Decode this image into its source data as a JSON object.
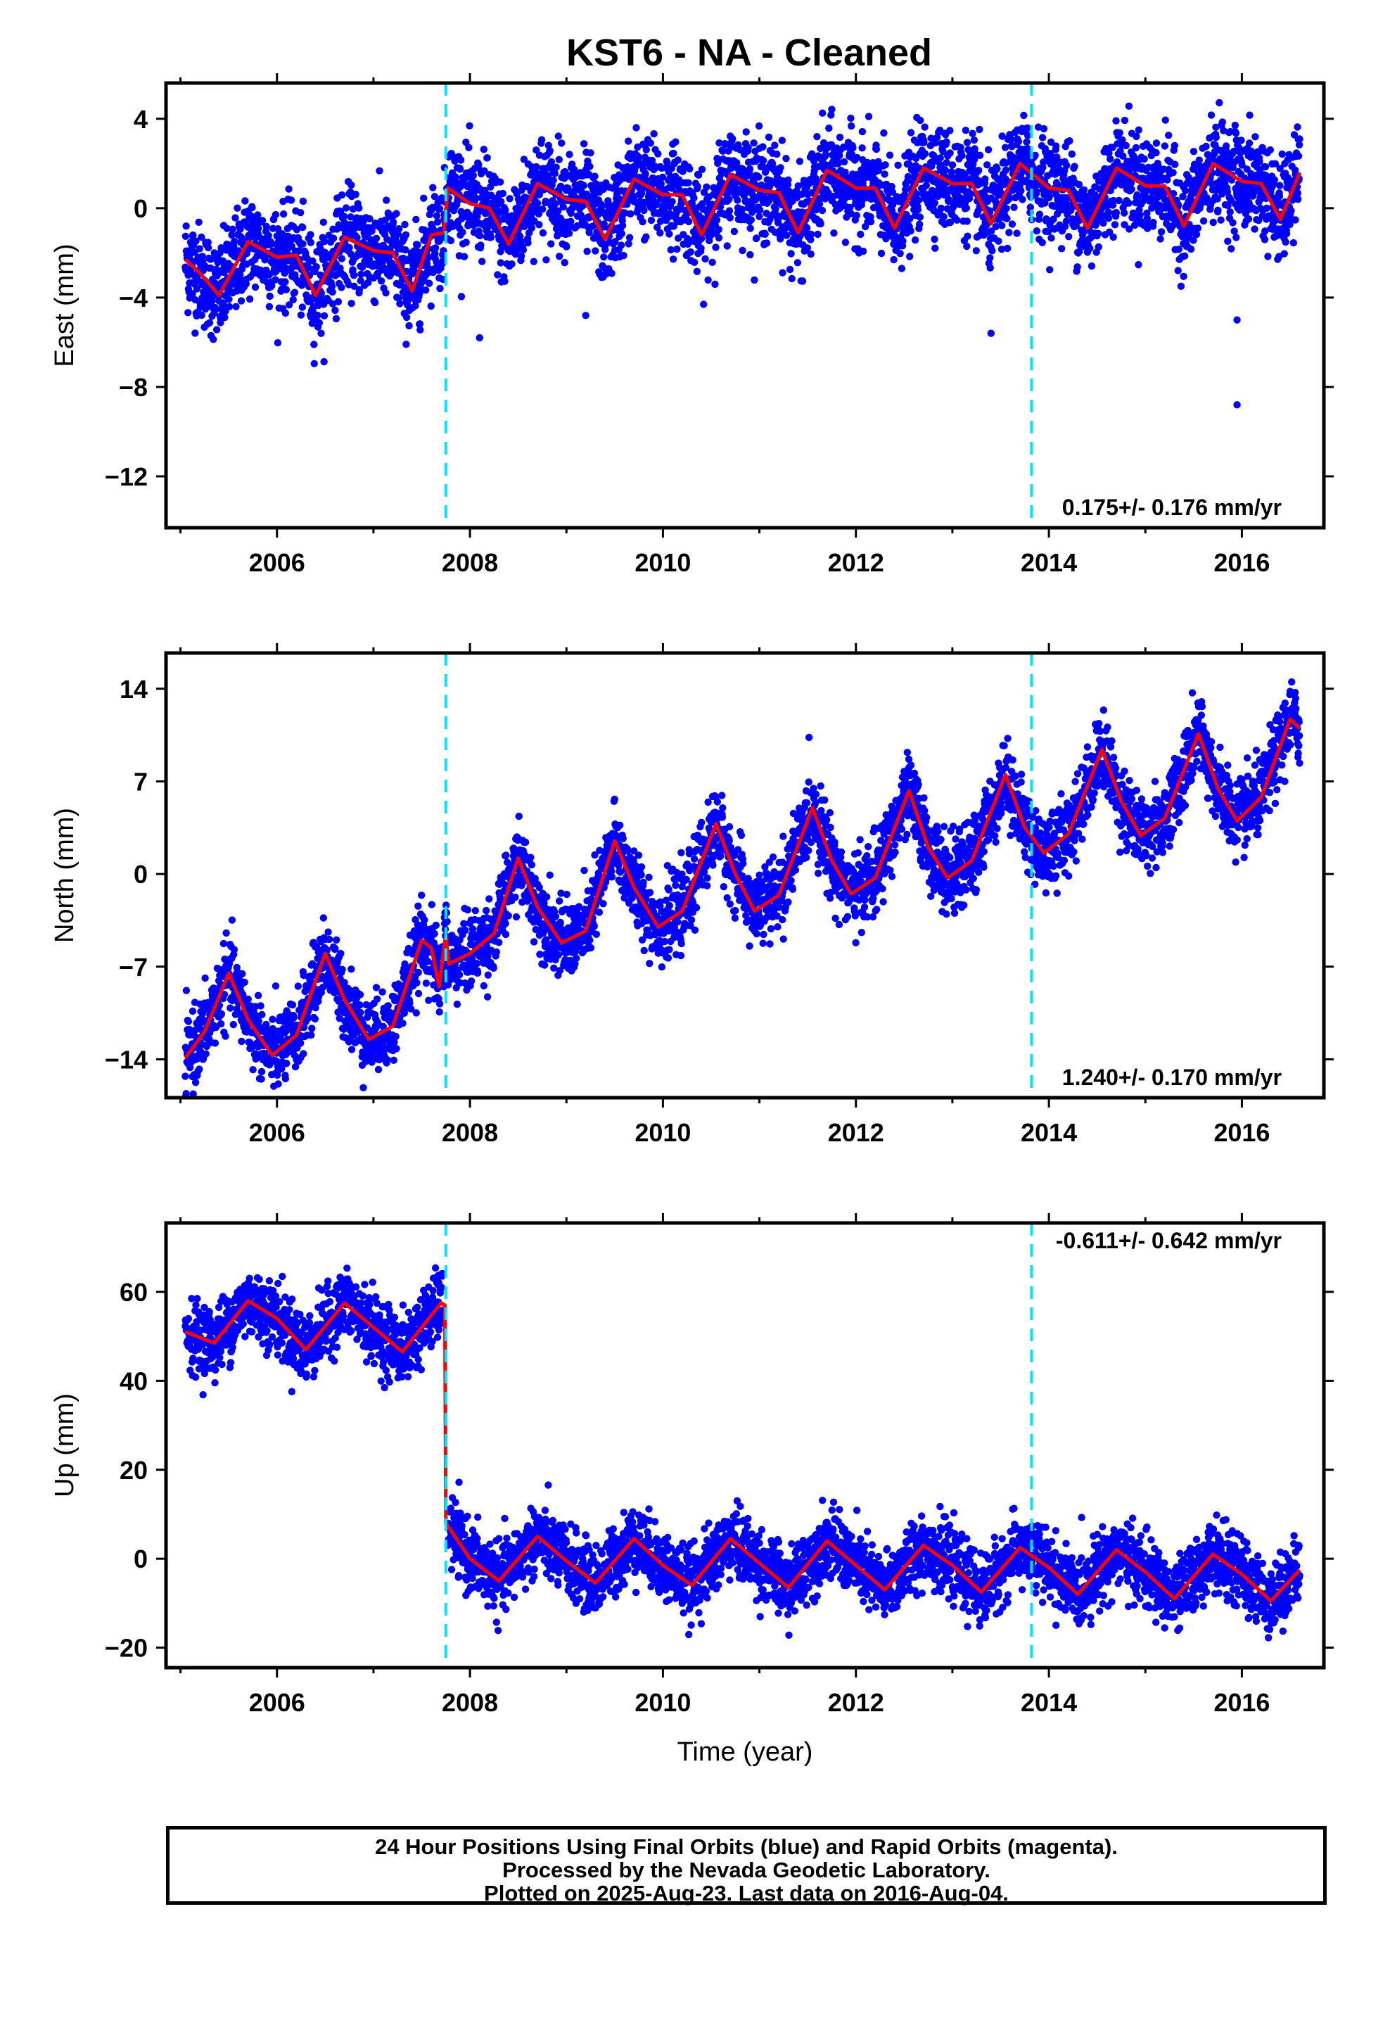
{
  "title": "KST6  - NA - Cleaned",
  "colors": {
    "points": "#0000ff",
    "model": "#ff0000",
    "breaks": "#00e5ff",
    "axes": "#000000"
  },
  "xlabel": "Time (year)",
  "footer": {
    "line1": "24 Hour Positions Using Final Orbits (blue) and Rapid Orbits (magenta).",
    "line2": "Processed by the Nevada Geodetic Laboratory.",
    "line3": "Plotted on 2025-Aug-23. Last data on 2016-Aug-04."
  },
  "chart_data": [
    {
      "type": "scatter",
      "ylabel": "East (mm)",
      "xlim": [
        2004.85,
        2016.85
      ],
      "ylim": [
        -14.3,
        5.6
      ],
      "xticks": [
        2006,
        2008,
        2010,
        2012,
        2014,
        2016
      ],
      "yticks": [
        4,
        0,
        -4,
        -8,
        -12
      ],
      "ytick_labels": [
        "4",
        "0",
        "−4",
        "−8",
        "−12"
      ],
      "breaks": [
        2007.75,
        2013.82
      ],
      "rate_text": "0.175+/- 0.176 mm/yr",
      "rate_position": "bottom-right",
      "series": [
        {
          "role": "points",
          "period1": {
            "start": 2005.05,
            "end": 2007.72,
            "offset": -2.4,
            "amp": 1.3,
            "phase": 0.3,
            "scatter": 1.0
          },
          "period2": {
            "start": 2007.78,
            "end": 2016.6,
            "offset": 0.6,
            "amp": 1.3,
            "phase": 0.9,
            "scatter": 1.1
          },
          "outliers": [
            [
              2015.95,
              -8.8
            ],
            [
              2015.95,
              -5.0
            ],
            [
              2013.4,
              -5.6
            ],
            [
              2008.1,
              -5.8
            ],
            [
              2009.2,
              -4.8
            ]
          ]
        },
        {
          "role": "model",
          "control": [
            [
              2005.05,
              -2.3
            ],
            [
              2005.2,
              -2.9
            ],
            [
              2005.4,
              -3.9
            ],
            [
              2005.7,
              -1.5
            ],
            [
              2006.0,
              -2.2
            ],
            [
              2006.2,
              -2.1
            ],
            [
              2006.4,
              -3.9
            ],
            [
              2006.7,
              -1.3
            ],
            [
              2007.0,
              -1.9
            ],
            [
              2007.2,
              -2.0
            ],
            [
              2007.4,
              -3.7
            ],
            [
              2007.6,
              -1.2
            ],
            [
              2007.73,
              -1.1
            ],
            [
              2007.77,
              0.9
            ],
            [
              2008.0,
              0.2
            ],
            [
              2008.2,
              0.0
            ],
            [
              2008.4,
              -1.6
            ],
            [
              2008.7,
              1.1
            ],
            [
              2009.0,
              0.4
            ],
            [
              2009.2,
              0.3
            ],
            [
              2009.4,
              -1.4
            ],
            [
              2009.7,
              1.3
            ],
            [
              2010.0,
              0.6
            ],
            [
              2010.2,
              0.6
            ],
            [
              2010.4,
              -1.2
            ],
            [
              2010.7,
              1.5
            ],
            [
              2011.0,
              0.8
            ],
            [
              2011.2,
              0.7
            ],
            [
              2011.4,
              -1.1
            ],
            [
              2011.7,
              1.7
            ],
            [
              2012.0,
              0.9
            ],
            [
              2012.2,
              0.9
            ],
            [
              2012.4,
              -0.9
            ],
            [
              2012.7,
              1.8
            ],
            [
              2013.0,
              1.1
            ],
            [
              2013.2,
              1.1
            ],
            [
              2013.4,
              -0.7
            ],
            [
              2013.7,
              2.0
            ],
            [
              2014.0,
              0.9
            ],
            [
              2014.2,
              0.8
            ],
            [
              2014.4,
              -0.9
            ],
            [
              2014.7,
              1.8
            ],
            [
              2015.0,
              1.0
            ],
            [
              2015.2,
              1.0
            ],
            [
              2015.4,
              -0.8
            ],
            [
              2015.7,
              2.0
            ],
            [
              2016.0,
              1.2
            ],
            [
              2016.2,
              1.1
            ],
            [
              2016.4,
              -0.5
            ],
            [
              2016.6,
              1.6
            ]
          ]
        }
      ]
    },
    {
      "type": "scatter",
      "ylabel": "North (mm)",
      "xlim": [
        2004.85,
        2016.85
      ],
      "ylim": [
        -16.9,
        16.7
      ],
      "xticks": [
        2006,
        2008,
        2010,
        2012,
        2014,
        2016
      ],
      "yticks": [
        14,
        7,
        0,
        -7,
        -14
      ],
      "ytick_labels": [
        "14",
        "7",
        "0",
        "−7",
        "−14"
      ],
      "breaks": [
        2007.75,
        2013.82
      ],
      "rate_text": "1.240+/- 0.170 mm/yr",
      "rate_position": "bottom-right",
      "series": [
        {
          "role": "points",
          "scatter": 1.4
        },
        {
          "role": "model",
          "control": [
            [
              2005.05,
              -13.9
            ],
            [
              2005.25,
              -11.9
            ],
            [
              2005.5,
              -7.5
            ],
            [
              2005.7,
              -11.0
            ],
            [
              2005.95,
              -13.7
            ],
            [
              2006.2,
              -12.2
            ],
            [
              2006.5,
              -6.0
            ],
            [
              2006.7,
              -9.5
            ],
            [
              2006.95,
              -12.5
            ],
            [
              2007.2,
              -11.5
            ],
            [
              2007.5,
              -5.0
            ],
            [
              2007.6,
              -5.6
            ],
            [
              2007.68,
              -8.5
            ],
            [
              2007.75,
              -4.5
            ],
            [
              2007.78,
              -6.8
            ],
            [
              2008.0,
              -6.0
            ],
            [
              2008.25,
              -4.5
            ],
            [
              2008.5,
              1.2
            ],
            [
              2008.7,
              -2.5
            ],
            [
              2008.95,
              -5.2
            ],
            [
              2009.2,
              -4.3
            ],
            [
              2009.5,
              2.5
            ],
            [
              2009.7,
              -1.0
            ],
            [
              2009.95,
              -4.0
            ],
            [
              2010.2,
              -2.8
            ],
            [
              2010.55,
              3.8
            ],
            [
              2010.75,
              0.0
            ],
            [
              2010.95,
              -2.8
            ],
            [
              2011.2,
              -1.6
            ],
            [
              2011.55,
              5.0
            ],
            [
              2011.75,
              1.0
            ],
            [
              2011.95,
              -1.5
            ],
            [
              2012.2,
              -0.3
            ],
            [
              2012.55,
              6.3
            ],
            [
              2012.75,
              2.0
            ],
            [
              2012.95,
              -0.3
            ],
            [
              2013.2,
              1.0
            ],
            [
              2013.55,
              7.5
            ],
            [
              2013.75,
              3.5
            ],
            [
              2013.95,
              1.6
            ],
            [
              2014.2,
              3.0
            ],
            [
              2014.55,
              9.4
            ],
            [
              2014.75,
              5.5
            ],
            [
              2014.95,
              2.9
            ],
            [
              2015.2,
              4.2
            ],
            [
              2015.55,
              10.6
            ],
            [
              2015.75,
              6.5
            ],
            [
              2015.95,
              4.0
            ],
            [
              2016.2,
              5.8
            ],
            [
              2016.5,
              11.7
            ],
            [
              2016.6,
              11.0
            ]
          ]
        }
      ]
    },
    {
      "type": "scatter",
      "ylabel": "Up (mm)",
      "xlim": [
        2004.85,
        2016.85
      ],
      "ylim": [
        -24.5,
        75.5
      ],
      "xticks": [
        2006,
        2008,
        2010,
        2012,
        2014,
        2016
      ],
      "yticks": [
        60,
        40,
        20,
        0,
        -20
      ],
      "ytick_labels": [
        "60",
        "40",
        "20",
        "0",
        "−20"
      ],
      "breaks": [
        2007.75,
        2013.82
      ],
      "rate_text": "-0.611+/- 0.642 mm/yr",
      "rate_position": "top-right",
      "series": [
        {
          "role": "points",
          "scatter": 3.8
        },
        {
          "role": "model",
          "control": [
            [
              2005.05,
              51.0
            ],
            [
              2005.35,
              48.5
            ],
            [
              2005.7,
              58.0
            ],
            [
              2006.0,
              54.0
            ],
            [
              2006.3,
              47.0
            ],
            [
              2006.7,
              57.5
            ],
            [
              2007.0,
              52.0
            ],
            [
              2007.3,
              46.5
            ],
            [
              2007.7,
              57.5
            ],
            [
              2007.74,
              57.0
            ],
            [
              2007.75,
              8.0
            ],
            [
              2008.0,
              0.0
            ],
            [
              2008.3,
              -5.0
            ],
            [
              2008.7,
              5.0
            ],
            [
              2009.0,
              -0.5
            ],
            [
              2009.3,
              -5.5
            ],
            [
              2009.7,
              4.5
            ],
            [
              2010.0,
              -1.5
            ],
            [
              2010.3,
              -6.0
            ],
            [
              2010.7,
              4.5
            ],
            [
              2011.0,
              -1.0
            ],
            [
              2011.3,
              -6.5
            ],
            [
              2011.7,
              4.0
            ],
            [
              2012.0,
              -1.5
            ],
            [
              2012.3,
              -7.0
            ],
            [
              2012.7,
              3.0
            ],
            [
              2013.0,
              -1.5
            ],
            [
              2013.3,
              -7.5
            ],
            [
              2013.7,
              2.5
            ],
            [
              2014.0,
              -2.0
            ],
            [
              2014.3,
              -8.0
            ],
            [
              2014.7,
              2.0
            ],
            [
              2015.0,
              -3.0
            ],
            [
              2015.3,
              -9.0
            ],
            [
              2015.7,
              1.0
            ],
            [
              2016.0,
              -3.5
            ],
            [
              2016.3,
              -9.5
            ],
            [
              2016.6,
              -2.5
            ]
          ]
        }
      ]
    }
  ]
}
